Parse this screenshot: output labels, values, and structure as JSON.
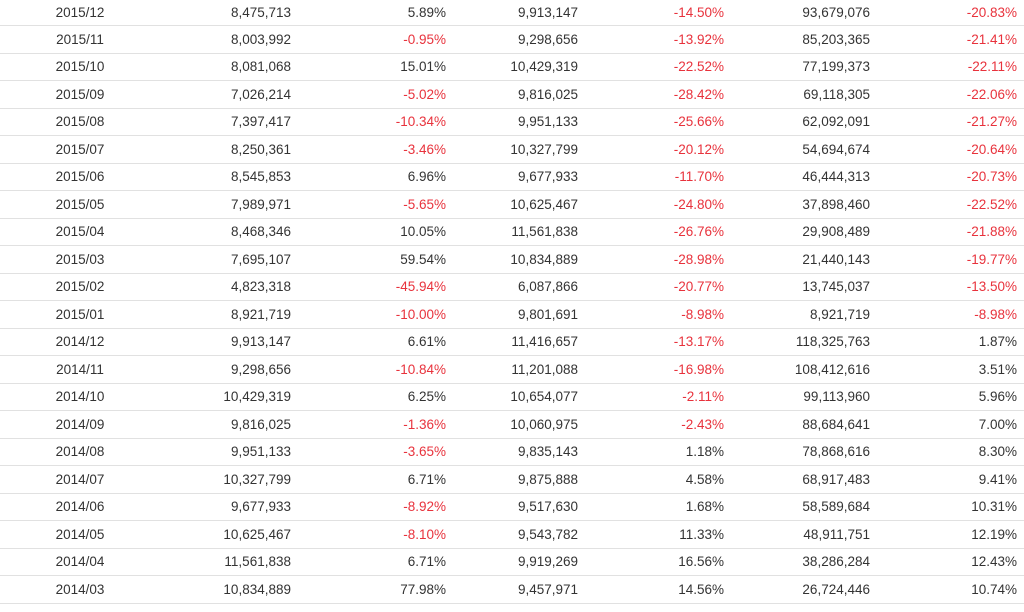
{
  "rows": [
    [
      "2015/12",
      "8,475,713",
      "5.89%",
      "9,913,147",
      "-14.50%",
      "93,679,076",
      "-20.83%"
    ],
    [
      "2015/11",
      "8,003,992",
      "-0.95%",
      "9,298,656",
      "-13.92%",
      "85,203,365",
      "-21.41%"
    ],
    [
      "2015/10",
      "8,081,068",
      "15.01%",
      "10,429,319",
      "-22.52%",
      "77,199,373",
      "-22.11%"
    ],
    [
      "2015/09",
      "7,026,214",
      "-5.02%",
      "9,816,025",
      "-28.42%",
      "69,118,305",
      "-22.06%"
    ],
    [
      "2015/08",
      "7,397,417",
      "-10.34%",
      "9,951,133",
      "-25.66%",
      "62,092,091",
      "-21.27%"
    ],
    [
      "2015/07",
      "8,250,361",
      "-3.46%",
      "10,327,799",
      "-20.12%",
      "54,694,674",
      "-20.64%"
    ],
    [
      "2015/06",
      "8,545,853",
      "6.96%",
      "9,677,933",
      "-11.70%",
      "46,444,313",
      "-20.73%"
    ],
    [
      "2015/05",
      "7,989,971",
      "-5.65%",
      "10,625,467",
      "-24.80%",
      "37,898,460",
      "-22.52%"
    ],
    [
      "2015/04",
      "8,468,346",
      "10.05%",
      "11,561,838",
      "-26.76%",
      "29,908,489",
      "-21.88%"
    ],
    [
      "2015/03",
      "7,695,107",
      "59.54%",
      "10,834,889",
      "-28.98%",
      "21,440,143",
      "-19.77%"
    ],
    [
      "2015/02",
      "4,823,318",
      "-45.94%",
      "6,087,866",
      "-20.77%",
      "13,745,037",
      "-13.50%"
    ],
    [
      "2015/01",
      "8,921,719",
      "-10.00%",
      "9,801,691",
      "-8.98%",
      "8,921,719",
      "-8.98%"
    ],
    [
      "2014/12",
      "9,913,147",
      "6.61%",
      "11,416,657",
      "-13.17%",
      "118,325,763",
      "1.87%"
    ],
    [
      "2014/11",
      "9,298,656",
      "-10.84%",
      "11,201,088",
      "-16.98%",
      "108,412,616",
      "3.51%"
    ],
    [
      "2014/10",
      "10,429,319",
      "6.25%",
      "10,654,077",
      "-2.11%",
      "99,113,960",
      "5.96%"
    ],
    [
      "2014/09",
      "9,816,025",
      "-1.36%",
      "10,060,975",
      "-2.43%",
      "88,684,641",
      "7.00%"
    ],
    [
      "2014/08",
      "9,951,133",
      "-3.65%",
      "9,835,143",
      "1.18%",
      "78,868,616",
      "8.30%"
    ],
    [
      "2014/07",
      "10,327,799",
      "6.71%",
      "9,875,888",
      "4.58%",
      "68,917,483",
      "9.41%"
    ],
    [
      "2014/06",
      "9,677,933",
      "-8.92%",
      "9,517,630",
      "1.68%",
      "58,589,684",
      "10.31%"
    ],
    [
      "2014/05",
      "10,625,467",
      "-8.10%",
      "9,543,782",
      "11.33%",
      "48,911,751",
      "12.19%"
    ],
    [
      "2014/04",
      "11,561,838",
      "6.71%",
      "9,919,269",
      "16.56%",
      "38,286,284",
      "12.43%"
    ],
    [
      "2014/03",
      "10,834,889",
      "77.98%",
      "9,457,971",
      "14.56%",
      "26,724,446",
      "10.74%"
    ]
  ],
  "colors": {
    "negative": "#e8323c",
    "text": "#333333",
    "border": "#e1e1e1"
  }
}
